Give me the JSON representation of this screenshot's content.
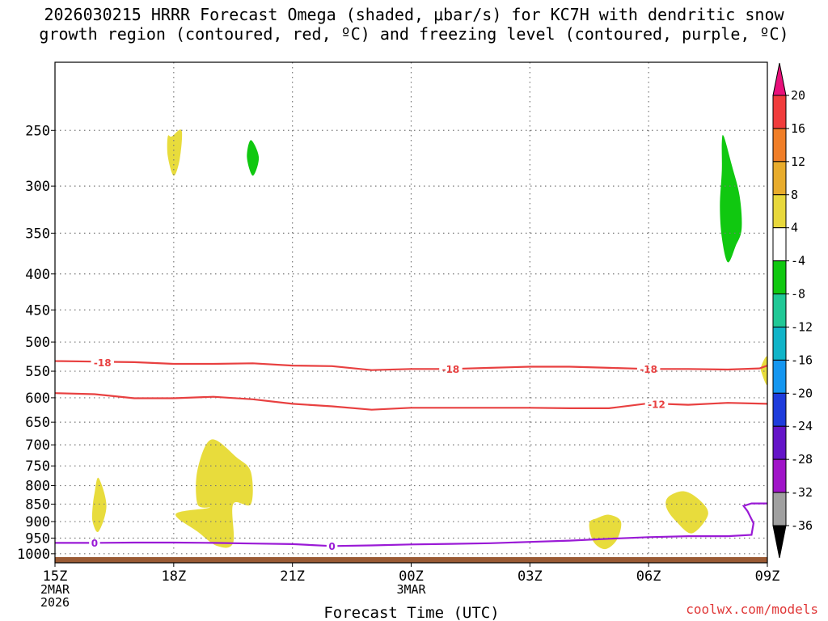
{
  "chart_data": {
    "type": "contour",
    "title_line1": "2026030215 HRRR Forecast Omega (shaded, μbar/s) for KC7H with dendritic snow",
    "title_line2": "growth region (contoured, red, ºC) and freezing level (contoured, purple, ºC)",
    "xlabel": "Forecast Time (UTC)",
    "xlim": [
      0,
      18
    ],
    "x_ticks": [
      {
        "x": 0,
        "label": "15Z",
        "sub1": "2MAR",
        "sub2": "2026"
      },
      {
        "x": 3,
        "label": "18Z"
      },
      {
        "x": 6,
        "label": "21Z"
      },
      {
        "x": 9,
        "label": "00Z",
        "sub1": "3MAR"
      },
      {
        "x": 12,
        "label": "03Z"
      },
      {
        "x": 15,
        "label": "06Z"
      },
      {
        "x": 18,
        "label": "09Z"
      }
    ],
    "y_scale": "log",
    "ylim": [
      1030,
      200
    ],
    "y_ticks": [
      250,
      300,
      350,
      400,
      450,
      500,
      550,
      600,
      650,
      700,
      750,
      800,
      850,
      900,
      950,
      1000
    ],
    "grid": true,
    "surface_color": "#9a5a34",
    "colorbar": {
      "levels": [
        "20",
        "16",
        "12",
        "8",
        "4",
        "-4",
        "-8",
        "-12",
        "-16",
        "-20",
        "-24",
        "-28",
        "-32",
        "-36"
      ],
      "colors": [
        "#e8107a",
        "#f03c3c",
        "#f07e28",
        "#e8ac2c",
        "#e8d83c",
        "#ffffff",
        "#10c810",
        "#20c896",
        "#10b4c8",
        "#1496f0",
        "#1e3cdc",
        "#6414c8",
        "#a014c8",
        "#a0a0a0",
        "#000000"
      ]
    },
    "shaded_regions": [
      {
        "name": "omega-pos-1",
        "omega_min": 4,
        "color": "#e8dc3c",
        "points": [
          [
            2.95,
            255
          ],
          [
            3.2,
            250
          ],
          [
            3.15,
            275
          ],
          [
            3.0,
            290
          ],
          [
            2.85,
            272
          ],
          [
            2.85,
            255
          ]
        ]
      },
      {
        "name": "omega-neg-1",
        "omega_max": -4,
        "color": "#10c810",
        "points": [
          [
            4.95,
            258
          ],
          [
            5.15,
            273
          ],
          [
            5.0,
            290
          ],
          [
            4.85,
            273
          ]
        ]
      },
      {
        "name": "omega-neg-2",
        "omega_max": -4,
        "color": "#10c810",
        "points": [
          [
            16.9,
            255
          ],
          [
            17.1,
            280
          ],
          [
            17.3,
            310
          ],
          [
            17.35,
            345
          ],
          [
            17.2,
            365
          ],
          [
            17.0,
            385
          ],
          [
            16.85,
            355
          ],
          [
            16.8,
            320
          ],
          [
            16.85,
            285
          ],
          [
            16.85,
            260
          ]
        ]
      },
      {
        "name": "omega-pos-2",
        "omega_min": 4,
        "color": "#e8dc3c",
        "points": [
          [
            1.1,
            780
          ],
          [
            1.3,
            855
          ],
          [
            1.1,
            930
          ],
          [
            0.95,
            900
          ],
          [
            0.95,
            860
          ],
          [
            1.0,
            820
          ]
        ]
      },
      {
        "name": "omega-pos-3",
        "omega_min": 4,
        "color": "#e8dc3c",
        "points": [
          [
            3.95,
            688
          ],
          [
            4.6,
            730
          ],
          [
            4.95,
            765
          ],
          [
            4.95,
            850
          ],
          [
            4.5,
            850
          ],
          [
            4.5,
            965
          ],
          [
            4.1,
            975
          ],
          [
            3.6,
            930
          ],
          [
            3.05,
            878
          ],
          [
            3.9,
            860
          ],
          [
            3.6,
            850
          ],
          [
            3.6,
            760
          ]
        ]
      },
      {
        "name": "omega-pos-4",
        "omega_min": 4,
        "color": "#e8dc3c",
        "points": [
          [
            14.0,
            880
          ],
          [
            14.3,
            900
          ],
          [
            14.2,
            955
          ],
          [
            13.9,
            985
          ],
          [
            13.6,
            960
          ],
          [
            13.5,
            905
          ],
          [
            13.7,
            890
          ]
        ]
      },
      {
        "name": "omega-pos-5",
        "omega_min": 4,
        "color": "#e8dc3c",
        "points": [
          [
            15.9,
            815
          ],
          [
            16.3,
            840
          ],
          [
            16.5,
            880
          ],
          [
            16.1,
            935
          ],
          [
            15.7,
            900
          ],
          [
            15.45,
            860
          ],
          [
            15.5,
            830
          ]
        ]
      },
      {
        "name": "omega-pos-6",
        "omega_min": 4,
        "color": "#e8dc3c",
        "points": [
          [
            18.0,
            525
          ],
          [
            18.0,
            575
          ],
          [
            17.85,
            552
          ],
          [
            17.85,
            540
          ]
        ]
      }
    ],
    "contours": [
      {
        "name": "temp-minus-18",
        "level": -18,
        "color": "#e84040",
        "label": "-18",
        "label_at": [
          [
            1.2,
            535
          ],
          [
            10.0,
            546
          ],
          [
            15.0,
            546
          ]
        ],
        "points": [
          [
            0,
            532
          ],
          [
            1.0,
            533
          ],
          [
            2.0,
            534
          ],
          [
            3.0,
            537
          ],
          [
            4.0,
            537
          ],
          [
            5.0,
            536
          ],
          [
            6.0,
            540
          ],
          [
            7.0,
            541
          ],
          [
            8.0,
            548
          ],
          [
            9.0,
            546
          ],
          [
            10.0,
            546
          ],
          [
            11.0,
            544
          ],
          [
            12.0,
            542
          ],
          [
            13.0,
            542
          ],
          [
            14.0,
            544
          ],
          [
            15.0,
            546
          ],
          [
            16.0,
            546
          ],
          [
            17.0,
            547
          ],
          [
            17.8,
            545
          ],
          [
            18.0,
            540
          ]
        ]
      },
      {
        "name": "temp-minus-12",
        "level": -12,
        "color": "#e84040",
        "label": "-12",
        "label_at": [
          [
            15.2,
            613
          ]
        ],
        "points": [
          [
            0,
            591
          ],
          [
            1.0,
            593
          ],
          [
            2.0,
            601
          ],
          [
            3.0,
            601
          ],
          [
            4.0,
            598
          ],
          [
            5.0,
            603
          ],
          [
            6.0,
            612
          ],
          [
            7.0,
            617
          ],
          [
            8.0,
            624
          ],
          [
            9.0,
            620
          ],
          [
            10.0,
            620
          ],
          [
            11.0,
            620
          ],
          [
            12.0,
            620
          ],
          [
            13.0,
            621
          ],
          [
            14.0,
            621
          ],
          [
            15.0,
            611
          ],
          [
            16.0,
            614
          ],
          [
            17.0,
            610
          ],
          [
            18.0,
            612
          ]
        ]
      },
      {
        "name": "freezing-level-0",
        "level": 0,
        "color": "#9a1ad6",
        "label": "0",
        "label_at": [
          [
            1.0,
            965
          ],
          [
            7.0,
            975
          ]
        ],
        "points": [
          [
            0,
            965
          ],
          [
            1.0,
            965
          ],
          [
            2.0,
            964
          ],
          [
            3.0,
            964
          ],
          [
            4.0,
            965
          ],
          [
            5.0,
            967
          ],
          [
            6.0,
            969
          ],
          [
            7.0,
            975
          ],
          [
            8.0,
            973
          ],
          [
            9.0,
            970
          ],
          [
            10.0,
            968
          ],
          [
            11.0,
            966
          ],
          [
            12.0,
            962
          ],
          [
            13.0,
            958
          ],
          [
            14.0,
            952
          ],
          [
            15.0,
            947
          ],
          [
            16.0,
            944
          ],
          [
            17.0,
            944
          ],
          [
            17.6,
            940
          ],
          [
            17.65,
            905
          ],
          [
            17.5,
            870
          ],
          [
            17.4,
            855
          ],
          [
            17.6,
            848
          ],
          [
            18.0,
            848
          ]
        ]
      }
    ]
  },
  "credit": "coolwx.com/models"
}
